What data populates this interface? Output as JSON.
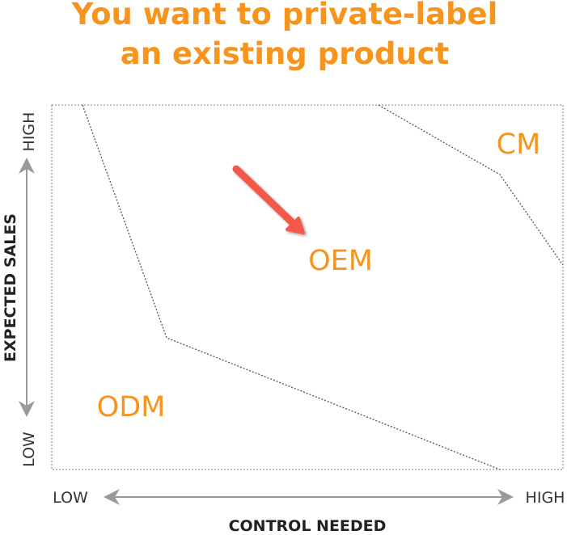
{
  "title": {
    "line1": "You want to private-label",
    "line2": "an existing product"
  },
  "zones": {
    "cm": "CM",
    "oem": "OEM",
    "odm": "ODM"
  },
  "y_axis": {
    "label": "EXPECTED SALES",
    "high": "HIGH",
    "low": "LOW"
  },
  "x_axis": {
    "label": "CONTROL NEEDED",
    "low": "LOW",
    "high": "HIGH"
  },
  "colors": {
    "accent": "#f7941d",
    "arrow": "#f4584a",
    "axis": "#9a9a9a"
  }
}
